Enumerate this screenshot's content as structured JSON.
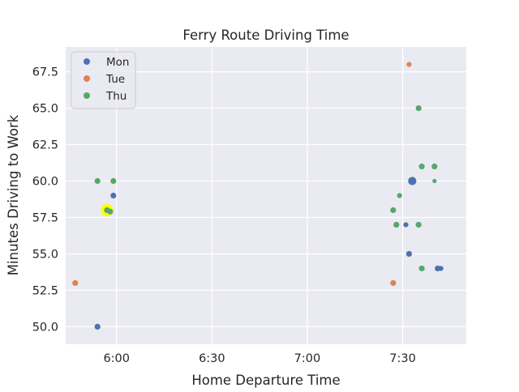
{
  "chart_data": {
    "type": "scatter",
    "title": "Ferry Route Driving Time",
    "xlabel": "Home Departure Time",
    "ylabel": "Minutes Driving to Work",
    "x_unit": "clock time",
    "xlim": [
      "5:44",
      "7:50"
    ],
    "ylim": [
      48.8,
      69.2
    ],
    "x_ticks": [
      "6:00",
      "6:30",
      "7:00",
      "7:30"
    ],
    "y_ticks": [
      50.0,
      52.5,
      55.0,
      57.5,
      60.0,
      62.5,
      65.0,
      67.5
    ],
    "grid": true,
    "legend_position": "top-left",
    "colors": {
      "background": "#eaeaf2",
      "grid": "#ffffff",
      "Mon": "#4c72b0",
      "Tue": "#dd8452",
      "Thu": "#55a868",
      "highlight": "#ffff00"
    },
    "series": [
      {
        "name": "Mon",
        "points": [
          {
            "x": "5:54",
            "y": 50.0,
            "size": 6
          },
          {
            "x": "5:58",
            "y": 57.9,
            "size": 5
          },
          {
            "x": "5:59",
            "y": 59.0,
            "size": 6
          },
          {
            "x": "7:31",
            "y": 57.0,
            "size": 5
          },
          {
            "x": "7:32",
            "y": 55.0,
            "size": 6
          },
          {
            "x": "7:33",
            "y": 60.0,
            "size": 9
          },
          {
            "x": "7:41",
            "y": 54.0,
            "size": 6
          },
          {
            "x": "7:42",
            "y": 54.0,
            "size": 5
          }
        ]
      },
      {
        "name": "Tue",
        "points": [
          {
            "x": "5:47",
            "y": 53.0,
            "size": 6
          },
          {
            "x": "7:32",
            "y": 68.0,
            "size": 5
          },
          {
            "x": "7:27",
            "y": 53.0,
            "size": 6
          }
        ]
      },
      {
        "name": "Thu",
        "points": [
          {
            "x": "5:54",
            "y": 60.0,
            "size": 6
          },
          {
            "x": "5:57",
            "y": 58.0,
            "size": 8,
            "highlight": true
          },
          {
            "x": "5:58",
            "y": 57.9,
            "size": 6
          },
          {
            "x": "5:59",
            "y": 60.0,
            "size": 6
          },
          {
            "x": "7:28",
            "y": 57.0,
            "size": 6
          },
          {
            "x": "7:27",
            "y": 58.0,
            "size": 6
          },
          {
            "x": "7:29",
            "y": 59.0,
            "size": 5
          },
          {
            "x": "7:35",
            "y": 57.0,
            "size": 6
          },
          {
            "x": "7:35",
            "y": 65.0,
            "size": 6
          },
          {
            "x": "7:36",
            "y": 61.0,
            "size": 6
          },
          {
            "x": "7:36",
            "y": 54.0,
            "size": 6
          },
          {
            "x": "7:40",
            "y": 61.0,
            "size": 6
          },
          {
            "x": "7:40",
            "y": 60.0,
            "size": 4
          }
        ]
      }
    ]
  }
}
